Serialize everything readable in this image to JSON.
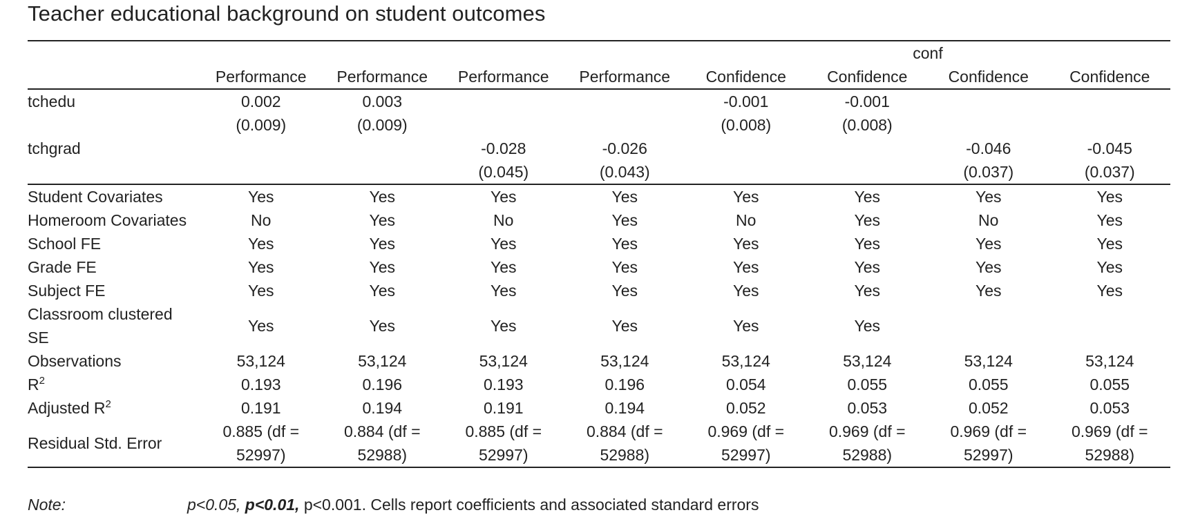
{
  "title": "Teacher educational background on student outcomes",
  "group_header": {
    "label": "conf"
  },
  "columns": [
    "Performance",
    "Performance",
    "Performance",
    "Performance",
    "Confidence",
    "Confidence",
    "Confidence",
    "Confidence"
  ],
  "rows": {
    "tchedu": {
      "label": "tchedu",
      "coef": [
        "0.002",
        "0.003",
        "",
        "",
        "-0.001",
        "-0.001",
        "",
        ""
      ],
      "se": [
        "(0.009)",
        "(0.009)",
        "",
        "",
        "(0.008)",
        "(0.008)",
        "",
        ""
      ]
    },
    "tchgrad": {
      "label": "tchgrad",
      "coef": [
        "",
        "",
        "-0.028",
        "-0.026",
        "",
        "",
        "-0.046",
        "-0.045"
      ],
      "se": [
        "",
        "",
        "(0.045)",
        "(0.043)",
        "",
        "",
        "(0.037)",
        "(0.037)"
      ]
    },
    "student_cov": {
      "label": "Student Covariates",
      "values": [
        "Yes",
        "Yes",
        "Yes",
        "Yes",
        "Yes",
        "Yes",
        "Yes",
        "Yes"
      ]
    },
    "homeroom_cov": {
      "label": "Homeroom Covariates",
      "values": [
        "No",
        "Yes",
        "No",
        "Yes",
        "No",
        "Yes",
        "No",
        "Yes"
      ]
    },
    "school_fe": {
      "label": "School FE",
      "values": [
        "Yes",
        "Yes",
        "Yes",
        "Yes",
        "Yes",
        "Yes",
        "Yes",
        "Yes"
      ]
    },
    "grade_fe": {
      "label": "Grade FE",
      "values": [
        "Yes",
        "Yes",
        "Yes",
        "Yes",
        "Yes",
        "Yes",
        "Yes",
        "Yes"
      ]
    },
    "subject_fe": {
      "label": "Subject FE",
      "values": [
        "Yes",
        "Yes",
        "Yes",
        "Yes",
        "Yes",
        "Yes",
        "Yes",
        "Yes"
      ]
    },
    "clustered_se": {
      "label": "Classroom clustered SE",
      "values": [
        "Yes",
        "Yes",
        "Yes",
        "Yes",
        "Yes",
        "Yes",
        "",
        ""
      ]
    },
    "observations": {
      "label": "Observations",
      "values": [
        "53,124",
        "53,124",
        "53,124",
        "53,124",
        "53,124",
        "53,124",
        "53,124",
        "53,124"
      ]
    },
    "r2": {
      "label_main": "R",
      "label_sup": "2",
      "values": [
        "0.193",
        "0.196",
        "0.193",
        "0.196",
        "0.054",
        "0.055",
        "0.055",
        "0.055"
      ]
    },
    "adj_r2": {
      "label_main": "Adjusted R",
      "label_sup": "2",
      "values": [
        "0.191",
        "0.194",
        "0.191",
        "0.194",
        "0.052",
        "0.053",
        "0.052",
        "0.053"
      ]
    },
    "resid_se": {
      "label": "Residual Std. Error",
      "values": [
        "0.885 (df = 52997)",
        "0.884 (df = 52988)",
        "0.885 (df = 52997)",
        "0.884 (df = 52988)",
        "0.969 (df = 52997)",
        "0.969 (df = 52988)",
        "0.969 (df = 52997)",
        "0.969 (df = 52988)"
      ]
    }
  },
  "note": {
    "label": "Note:",
    "p1": "p<0.05,",
    "p2": "p<0.01,",
    "p3": "p<0.001. Cells report coefficients and associated standard errors"
  }
}
